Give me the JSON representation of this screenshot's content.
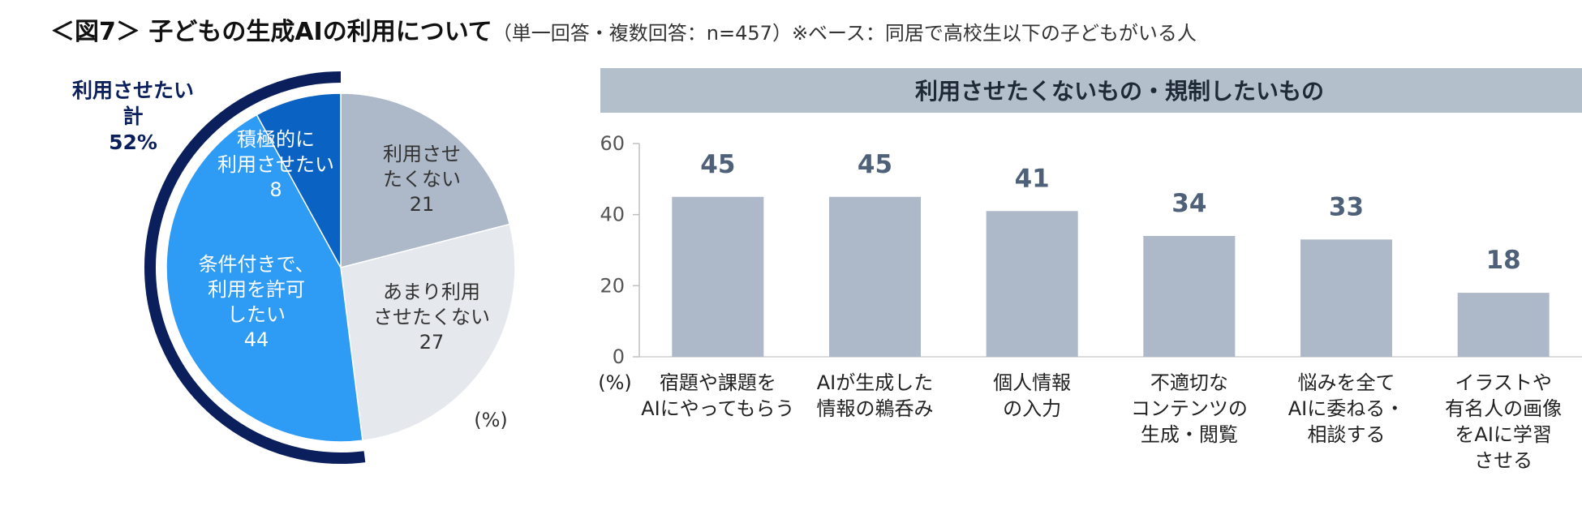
{
  "title": {
    "main": "＜図7＞ 子どもの生成AIの利用について",
    "sub": "（単一回答・複数回答：n=457）※ベース：同居で高校生以下の子どもがいる人"
  },
  "chart_data": [
    {
      "type": "pie",
      "unit_label": "(%)",
      "slices": [
        {
          "label_lines": [
            "利用させ",
            "たくない"
          ],
          "value": 21,
          "color": "#adb9c8",
          "text_color": "#333333"
        },
        {
          "label_lines": [
            "あまり利用",
            "させたくない"
          ],
          "value": 27,
          "color": "#e5e9ee",
          "text_color": "#333333"
        },
        {
          "label_lines": [
            "条件付きで、",
            "利用を許可",
            "したい"
          ],
          "value": 44,
          "color": "#2e9bf5",
          "text_color": "#ffffff"
        },
        {
          "label_lines": [
            "積極的に",
            "利用させたい"
          ],
          "value": 8,
          "color": "#0a63c2",
          "text_color": "#ffffff"
        }
      ],
      "total_label_lines": [
        "利用させたい",
        "計",
        "52%"
      ],
      "total_color": "#0b1f5c"
    },
    {
      "type": "bar",
      "title": "利用させたくないもの・規制したいもの",
      "unit_label": "(%)",
      "ylim": [
        0,
        60
      ],
      "yticks": [
        0,
        20,
        40,
        60
      ],
      "bar_color": "#adb9c8",
      "panel_color": "#b4bfcc",
      "categories": [
        [
          "宿題や課題を",
          "AIにやってもらう"
        ],
        [
          "AIが生成した",
          "情報の鵜呑み"
        ],
        [
          "個人情報",
          "の入力"
        ],
        [
          "不適切な",
          "コンテンツの",
          "生成・閲覧"
        ],
        [
          "悩みを全て",
          "AIに委ねる・",
          "相談する"
        ],
        [
          "イラストや",
          "有名人の画像",
          "をAIに学習",
          "させる"
        ]
      ],
      "values": [
        45,
        45,
        41,
        34,
        33,
        18
      ]
    }
  ]
}
